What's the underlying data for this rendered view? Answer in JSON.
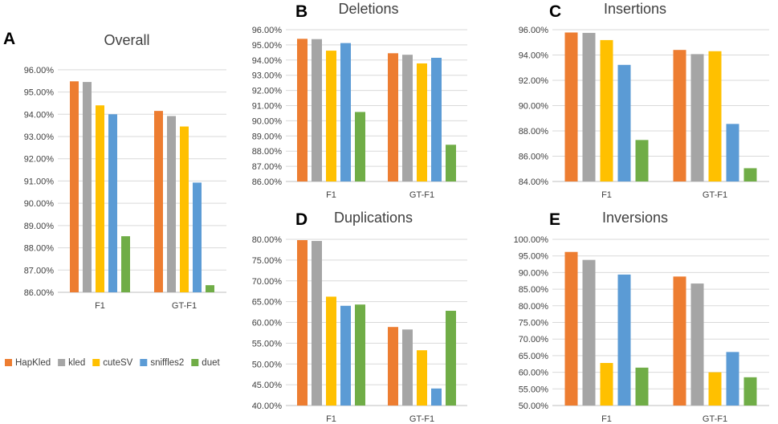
{
  "series_names": [
    "HapKled",
    "kled",
    "cuteSV",
    "sniffles2",
    "duet"
  ],
  "colors": [
    "#ED7D31",
    "#A5A5A5",
    "#FFC000",
    "#5B9BD5",
    "#70AD47"
  ],
  "legend": [
    {
      "name": "HapKled",
      "color": "#ED7D31"
    },
    {
      "name": "kled",
      "color": "#A5A5A5"
    },
    {
      "name": "cuteSV",
      "color": "#FFC000"
    },
    {
      "name": "sniffles2",
      "color": "#5B9BD5"
    },
    {
      "name": "duet",
      "color": "#70AD47"
    }
  ],
  "chart_data": [
    {
      "id": "A",
      "type": "bar",
      "panel_letter": "A",
      "title": "Overall",
      "categories": [
        "F1",
        "GT-F1"
      ],
      "ylim": [
        86,
        96.5
      ],
      "yticks": [
        86,
        87,
        88,
        89,
        90,
        91,
        92,
        93,
        94,
        95,
        96
      ],
      "ytick_labels": [
        "86.00%",
        "87.00%",
        "88.00%",
        "89.00%",
        "90.00%",
        "91.00%",
        "92.00%",
        "93.00%",
        "94.00%",
        "95.00%",
        "96.00%"
      ],
      "grid": true,
      "series": [
        {
          "name": "HapKled",
          "values": [
            95.48,
            94.15
          ]
        },
        {
          "name": "kled",
          "values": [
            95.45,
            93.92
          ]
        },
        {
          "name": "cuteSV",
          "values": [
            94.4,
            93.45
          ]
        },
        {
          "name": "sniffles2",
          "values": [
            94.0,
            90.93
          ]
        },
        {
          "name": "duet",
          "values": [
            88.52,
            86.32
          ]
        }
      ]
    },
    {
      "id": "B",
      "type": "bar",
      "panel_letter": "B",
      "title": "Deletions",
      "categories": [
        "F1",
        "GT-F1"
      ],
      "ylim": [
        86,
        96
      ],
      "yticks": [
        86,
        87,
        88,
        89,
        90,
        91,
        92,
        93,
        94,
        95,
        96
      ],
      "ytick_labels": [
        "86.00%",
        "87.00%",
        "88.00%",
        "89.00%",
        "90.00%",
        "91.00%",
        "92.00%",
        "93.00%",
        "94.00%",
        "95.00%",
        "96.00%"
      ],
      "grid": true,
      "series": [
        {
          "name": "HapKled",
          "values": [
            95.4,
            94.45
          ]
        },
        {
          "name": "kled",
          "values": [
            95.38,
            94.35
          ]
        },
        {
          "name": "cuteSV",
          "values": [
            94.62,
            93.78
          ]
        },
        {
          "name": "sniffles2",
          "values": [
            95.12,
            94.15
          ]
        },
        {
          "name": "duet",
          "values": [
            90.58,
            88.42
          ]
        }
      ]
    },
    {
      "id": "C",
      "type": "bar",
      "panel_letter": "C",
      "title": "Insertions",
      "categories": [
        "F1",
        "GT-F1"
      ],
      "ylim": [
        84,
        96
      ],
      "yticks": [
        84,
        86,
        88,
        90,
        92,
        94,
        96
      ],
      "ytick_labels": [
        "84.00%",
        "86.00%",
        "88.00%",
        "90.00%",
        "92.00%",
        "94.00%",
        "96.00%"
      ],
      "grid": true,
      "series": [
        {
          "name": "HapKled",
          "values": [
            95.78,
            94.4
          ]
        },
        {
          "name": "kled",
          "values": [
            95.75,
            94.07
          ]
        },
        {
          "name": "cuteSV",
          "values": [
            95.18,
            94.3
          ]
        },
        {
          "name": "sniffles2",
          "values": [
            93.22,
            88.55
          ]
        },
        {
          "name": "duet",
          "values": [
            87.28,
            85.05
          ]
        }
      ]
    },
    {
      "id": "D",
      "type": "bar",
      "panel_letter": "D",
      "title": "Duplications",
      "categories": [
        "F1",
        "GT-F1"
      ],
      "ylim": [
        40,
        80
      ],
      "yticks": [
        40,
        45,
        50,
        55,
        60,
        65,
        70,
        75,
        80
      ],
      "ytick_labels": [
        "40.00%",
        "45.00%",
        "50.00%",
        "55.00%",
        "60.00%",
        "65.00%",
        "70.00%",
        "75.00%",
        "80.00%"
      ],
      "grid": true,
      "series": [
        {
          "name": "HapKled",
          "values": [
            79.8,
            58.9
          ]
        },
        {
          "name": "kled",
          "values": [
            79.6,
            58.3
          ]
        },
        {
          "name": "cuteSV",
          "values": [
            66.2,
            53.3
          ]
        },
        {
          "name": "sniffles2",
          "values": [
            64.0,
            44.1
          ]
        },
        {
          "name": "duet",
          "values": [
            64.3,
            62.8
          ]
        }
      ]
    },
    {
      "id": "E",
      "type": "bar",
      "panel_letter": "E",
      "title": "Inversions",
      "categories": [
        "F1",
        "GT-F1"
      ],
      "ylim": [
        50,
        100
      ],
      "yticks": [
        50,
        55,
        60,
        65,
        70,
        75,
        80,
        85,
        90,
        95,
        100
      ],
      "ytick_labels": [
        "50.00%",
        "55.00%",
        "60.00%",
        "65.00%",
        "70.00%",
        "75.00%",
        "80.00%",
        "85.00%",
        "90.00%",
        "95.00%",
        "100.00%"
      ],
      "grid": true,
      "series": [
        {
          "name": "HapKled",
          "values": [
            96.2,
            88.8
          ]
        },
        {
          "name": "kled",
          "values": [
            93.8,
            86.7
          ]
        },
        {
          "name": "cuteSV",
          "values": [
            62.8,
            60.0
          ]
        },
        {
          "name": "sniffles2",
          "values": [
            89.4,
            66.1
          ]
        },
        {
          "name": "duet",
          "values": [
            61.4,
            58.5
          ]
        }
      ]
    }
  ]
}
